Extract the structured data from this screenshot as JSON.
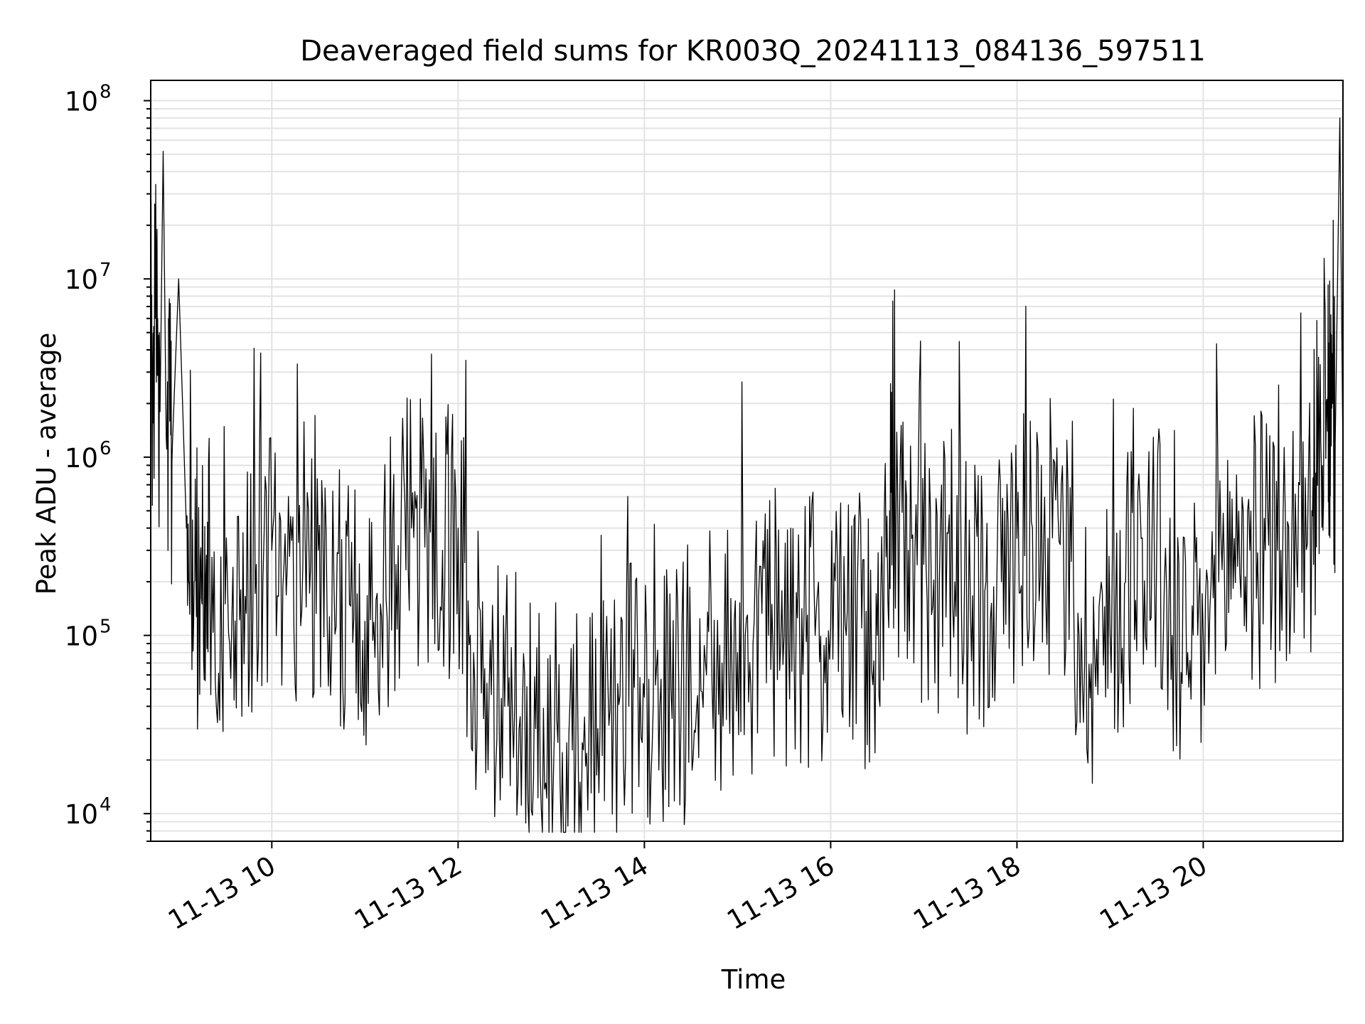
{
  "chart_data": {
    "type": "line",
    "title": "Deaveraged field sums for KR003Q_20241113_084136_597511",
    "xlabel": "Time",
    "ylabel": "Peak ADU - average",
    "yscale": "log",
    "xlim": [
      "2024-11-13 08:42",
      "2024-11-13 21:30"
    ],
    "ylim": [
      7000,
      130000000
    ],
    "grid": true,
    "line_color": "#000000",
    "x_ticks": [
      "11-13 10",
      "11-13 12",
      "11-13 14",
      "11-13 16",
      "11-13 18",
      "11-13 20"
    ],
    "y_ticks": [
      {
        "base": "10",
        "exp": "4"
      },
      {
        "base": "10",
        "exp": "5"
      },
      {
        "base": "10",
        "exp": "6"
      },
      {
        "base": "10",
        "exp": "7"
      },
      {
        "base": "10",
        "exp": "8"
      }
    ],
    "series": [
      {
        "x": [
          "08:42",
          "08:45",
          "08:48",
          "08:50",
          "08:52",
          "08:56",
          "09:00",
          "09:05",
          "09:10",
          "09:15",
          "09:20",
          "09:30",
          "09:40",
          "09:50",
          "10:00",
          "10:10",
          "10:20",
          "10:30",
          "10:40",
          "10:50",
          "11:00",
          "11:10",
          "11:20",
          "11:30",
          "11:40",
          "11:50",
          "12:00",
          "12:10",
          "12:20",
          "12:30",
          "12:40",
          "12:50",
          "13:00",
          "13:10",
          "13:20",
          "13:30",
          "13:40",
          "13:50",
          "14:00",
          "14:10",
          "14:20",
          "14:30",
          "14:40",
          "14:50",
          "15:00",
          "15:10",
          "15:20",
          "15:30",
          "15:40",
          "15:50",
          "16:00",
          "16:10",
          "16:20",
          "16:30",
          "16:38",
          "16:42",
          "16:50",
          "17:00",
          "17:10",
          "17:20",
          "17:30",
          "17:40",
          "17:50",
          "18:00",
          "18:10",
          "18:20",
          "18:30",
          "18:40",
          "18:50",
          "19:00",
          "19:10",
          "19:20",
          "19:30",
          "19:40",
          "19:50",
          "20:00",
          "20:10",
          "20:20",
          "20:30",
          "20:40",
          "20:50",
          "21:00",
          "21:10",
          "21:15",
          "21:20",
          "21:22",
          "21:25",
          "21:28",
          "21:30"
        ],
        "y": [
          1500000,
          6000000,
          1800000,
          52000000,
          1300000,
          1200000,
          10000000,
          400000,
          200000,
          150000,
          250000,
          150000,
          180000,
          250000,
          300000,
          250000,
          250000,
          300000,
          200000,
          150000,
          120000,
          150000,
          250000,
          400000,
          350000,
          300000,
          400000,
          80000,
          50000,
          40000,
          35000,
          30000,
          25000,
          25000,
          25000,
          30000,
          35000,
          40000,
          45000,
          40000,
          50000,
          55000,
          60000,
          70000,
          80000,
          90000,
          100000,
          100000,
          110000,
          100000,
          110000,
          100000,
          110000,
          100000,
          500000,
          350000,
          300000,
          250000,
          200000,
          200000,
          150000,
          200000,
          200000,
          350000,
          400000,
          350000,
          300000,
          100000,
          80000,
          100000,
          200000,
          350000,
          300000,
          100000,
          80000,
          100000,
          200000,
          350000,
          300000,
          300000,
          300000,
          300000,
          500000,
          1500000,
          1400000,
          1800000,
          1200000,
          80000000,
          1000000
        ]
      }
    ]
  }
}
